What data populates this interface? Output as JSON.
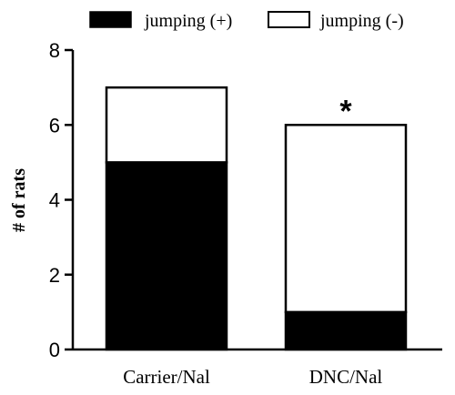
{
  "chart_data": {
    "type": "bar",
    "stacked": true,
    "categories": [
      "Carrier/Nal",
      "DNC/Nal"
    ],
    "series": [
      {
        "name": "jumping (+)",
        "values": [
          5,
          1
        ],
        "color": "#000000"
      },
      {
        "name": "jumping (-)",
        "values": [
          2,
          5
        ],
        "color": "#ffffff"
      }
    ],
    "title": "",
    "xlabel": "",
    "ylabel": "# of rats",
    "ylim": [
      0,
      8
    ],
    "yticks": [
      0,
      2,
      4,
      6,
      8
    ],
    "grid": false,
    "legend_position": "top",
    "annotations": [
      {
        "category": "DNC/Nal",
        "text": "*"
      }
    ]
  }
}
